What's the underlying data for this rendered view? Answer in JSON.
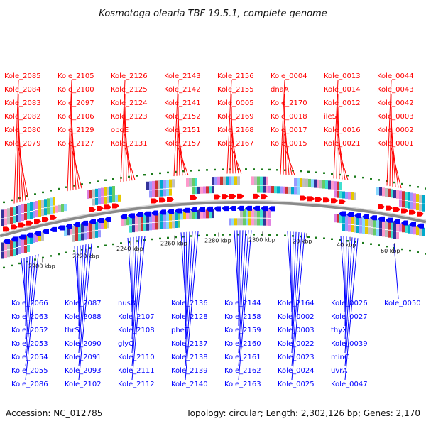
{
  "title": "Kosmotoga olearia TBF 19.5.1, complete genome",
  "accession": "Accession: NC_012785",
  "topology": "Topology: circular; Length: 2,302,126 bp; Genes: 2,170",
  "colors": {
    "forward": "#ff0000",
    "reverse": "#0000ff",
    "pseudo": "#ff88cc",
    "backbone": "#888888",
    "dots": "#1a7a1a"
  },
  "scale_ticks": [
    "2200 kbp",
    "2220 kbp",
    "2240 kbp",
    "2260 kbp",
    "2280 kbp",
    "2300 kbp",
    "20 kbp",
    "40 kbp",
    "60 kbp"
  ],
  "top_labels": [
    "Kole_2085",
    "Kole_2084",
    "Kole_2083",
    "Kole_2082",
    "Kole_2080",
    "Kole_2079",
    "Kole_2105",
    "Kole_2100",
    "Kole_2097",
    "Kole_2106",
    "Kole_2129",
    "Kole_2127",
    "Kole_2126",
    "Kole_2125",
    "Kole_2124",
    "Kole_2123",
    "obgE",
    "Kole_2131",
    "Kole_2143",
    "Kole_2142",
    "Kole_2141",
    "Kole_2152",
    "Kole_2151",
    "Kole_2157",
    "Kole_2156",
    "Kole_2155",
    "Kole_0005",
    "Kole_2169",
    "Kole_2168",
    "Kole_2167",
    "Kole_0004",
    "dnaA",
    "Kole_2170",
    "Kole_0018",
    "Kole_0017",
    "Kole_0015",
    "Kole_0013",
    "Kole_0014",
    "Kole_0012",
    "ileS",
    "Kole_0016",
    "Kole_0021",
    "Kole_0044",
    "Kole_0043",
    "Kole_0042",
    "Kole_0003",
    "Kole_0002",
    "Kole_0001"
  ],
  "bottom_labels": [
    "Kole_2066",
    "Kole_2063",
    "Kole_2052",
    "Kole_2053",
    "Kole_2054",
    "Kole_2055",
    "Kole_2086",
    "Kole_2087",
    "Kole_2088",
    "thrS",
    "Kole_2090",
    "Kole_2091",
    "Kole_2093",
    "Kole_2102",
    "nusB",
    "Kole_2107",
    "Kole_2108",
    "glyQ",
    "Kole_2110",
    "Kole_2111",
    "Kole_2112",
    "Kole_2136",
    "Kole_2128",
    "pheT",
    "Kole_2137",
    "Kole_2138",
    "Kole_2139",
    "Kole_2140",
    "Kole_2144",
    "Kole_2158",
    "Kole_2159",
    "Kole_2160",
    "Kole_2161",
    "Kole_2162",
    "Kole_2163",
    "Kole_2164",
    "Kole_0002",
    "Kole_0003",
    "Kole_0022",
    "Kole_0023",
    "Kole_0024",
    "Kole_0025",
    "Kole_0026",
    "Kole_0027",
    "thyX",
    "Kole_0039",
    "minC",
    "uvrA",
    "Kole_0047",
    "Kole_0050"
  ]
}
